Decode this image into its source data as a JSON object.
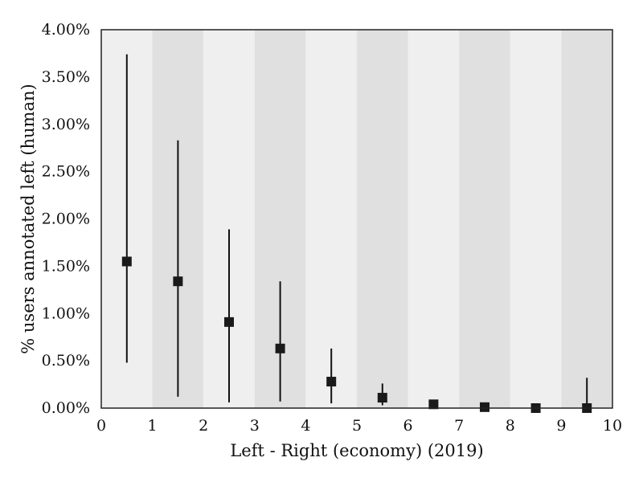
{
  "chart_data": {
    "type": "scatter",
    "title": "",
    "xlabel": "Left - Right (economy) (2019)",
    "ylabel": "% users annotated left (human)",
    "xlim": [
      0,
      10
    ],
    "ylim": [
      0,
      4.0
    ],
    "x_ticks": [
      "0",
      "1",
      "2",
      "3",
      "4",
      "5",
      "6",
      "7",
      "8",
      "9",
      "10"
    ],
    "y_ticks": [
      "0.00%",
      "0.50%",
      "1.00%",
      "1.50%",
      "2.00%",
      "2.50%",
      "3.00%",
      "3.50%",
      "4.00%"
    ],
    "grid": false,
    "background_bands": {
      "light_color": "#efefef",
      "dark_color": "#e0e0e0",
      "pattern": "alternating unit-width vertical bands, light first"
    },
    "marker": "square",
    "marker_color": "#1a1a1a",
    "series": [
      {
        "points": [
          {
            "x": 0.5,
            "y": 1.55,
            "low": 0.48,
            "high": 3.74
          },
          {
            "x": 1.5,
            "y": 1.34,
            "low": 0.12,
            "high": 2.83
          },
          {
            "x": 2.5,
            "y": 0.91,
            "low": 0.06,
            "high": 1.89
          },
          {
            "x": 3.5,
            "y": 0.63,
            "low": 0.07,
            "high": 1.34
          },
          {
            "x": 4.5,
            "y": 0.28,
            "low": 0.05,
            "high": 0.63
          },
          {
            "x": 5.5,
            "y": 0.11,
            "low": 0.03,
            "high": 0.26
          },
          {
            "x": 6.5,
            "y": 0.04,
            "low": 0.04,
            "high": 0.04
          },
          {
            "x": 7.5,
            "y": 0.01,
            "low": 0.01,
            "high": 0.01
          },
          {
            "x": 8.5,
            "y": 0.0,
            "low": 0.0,
            "high": 0.0
          },
          {
            "x": 9.5,
            "y": 0.0,
            "low": 0.0,
            "high": 0.32
          }
        ]
      }
    ]
  }
}
